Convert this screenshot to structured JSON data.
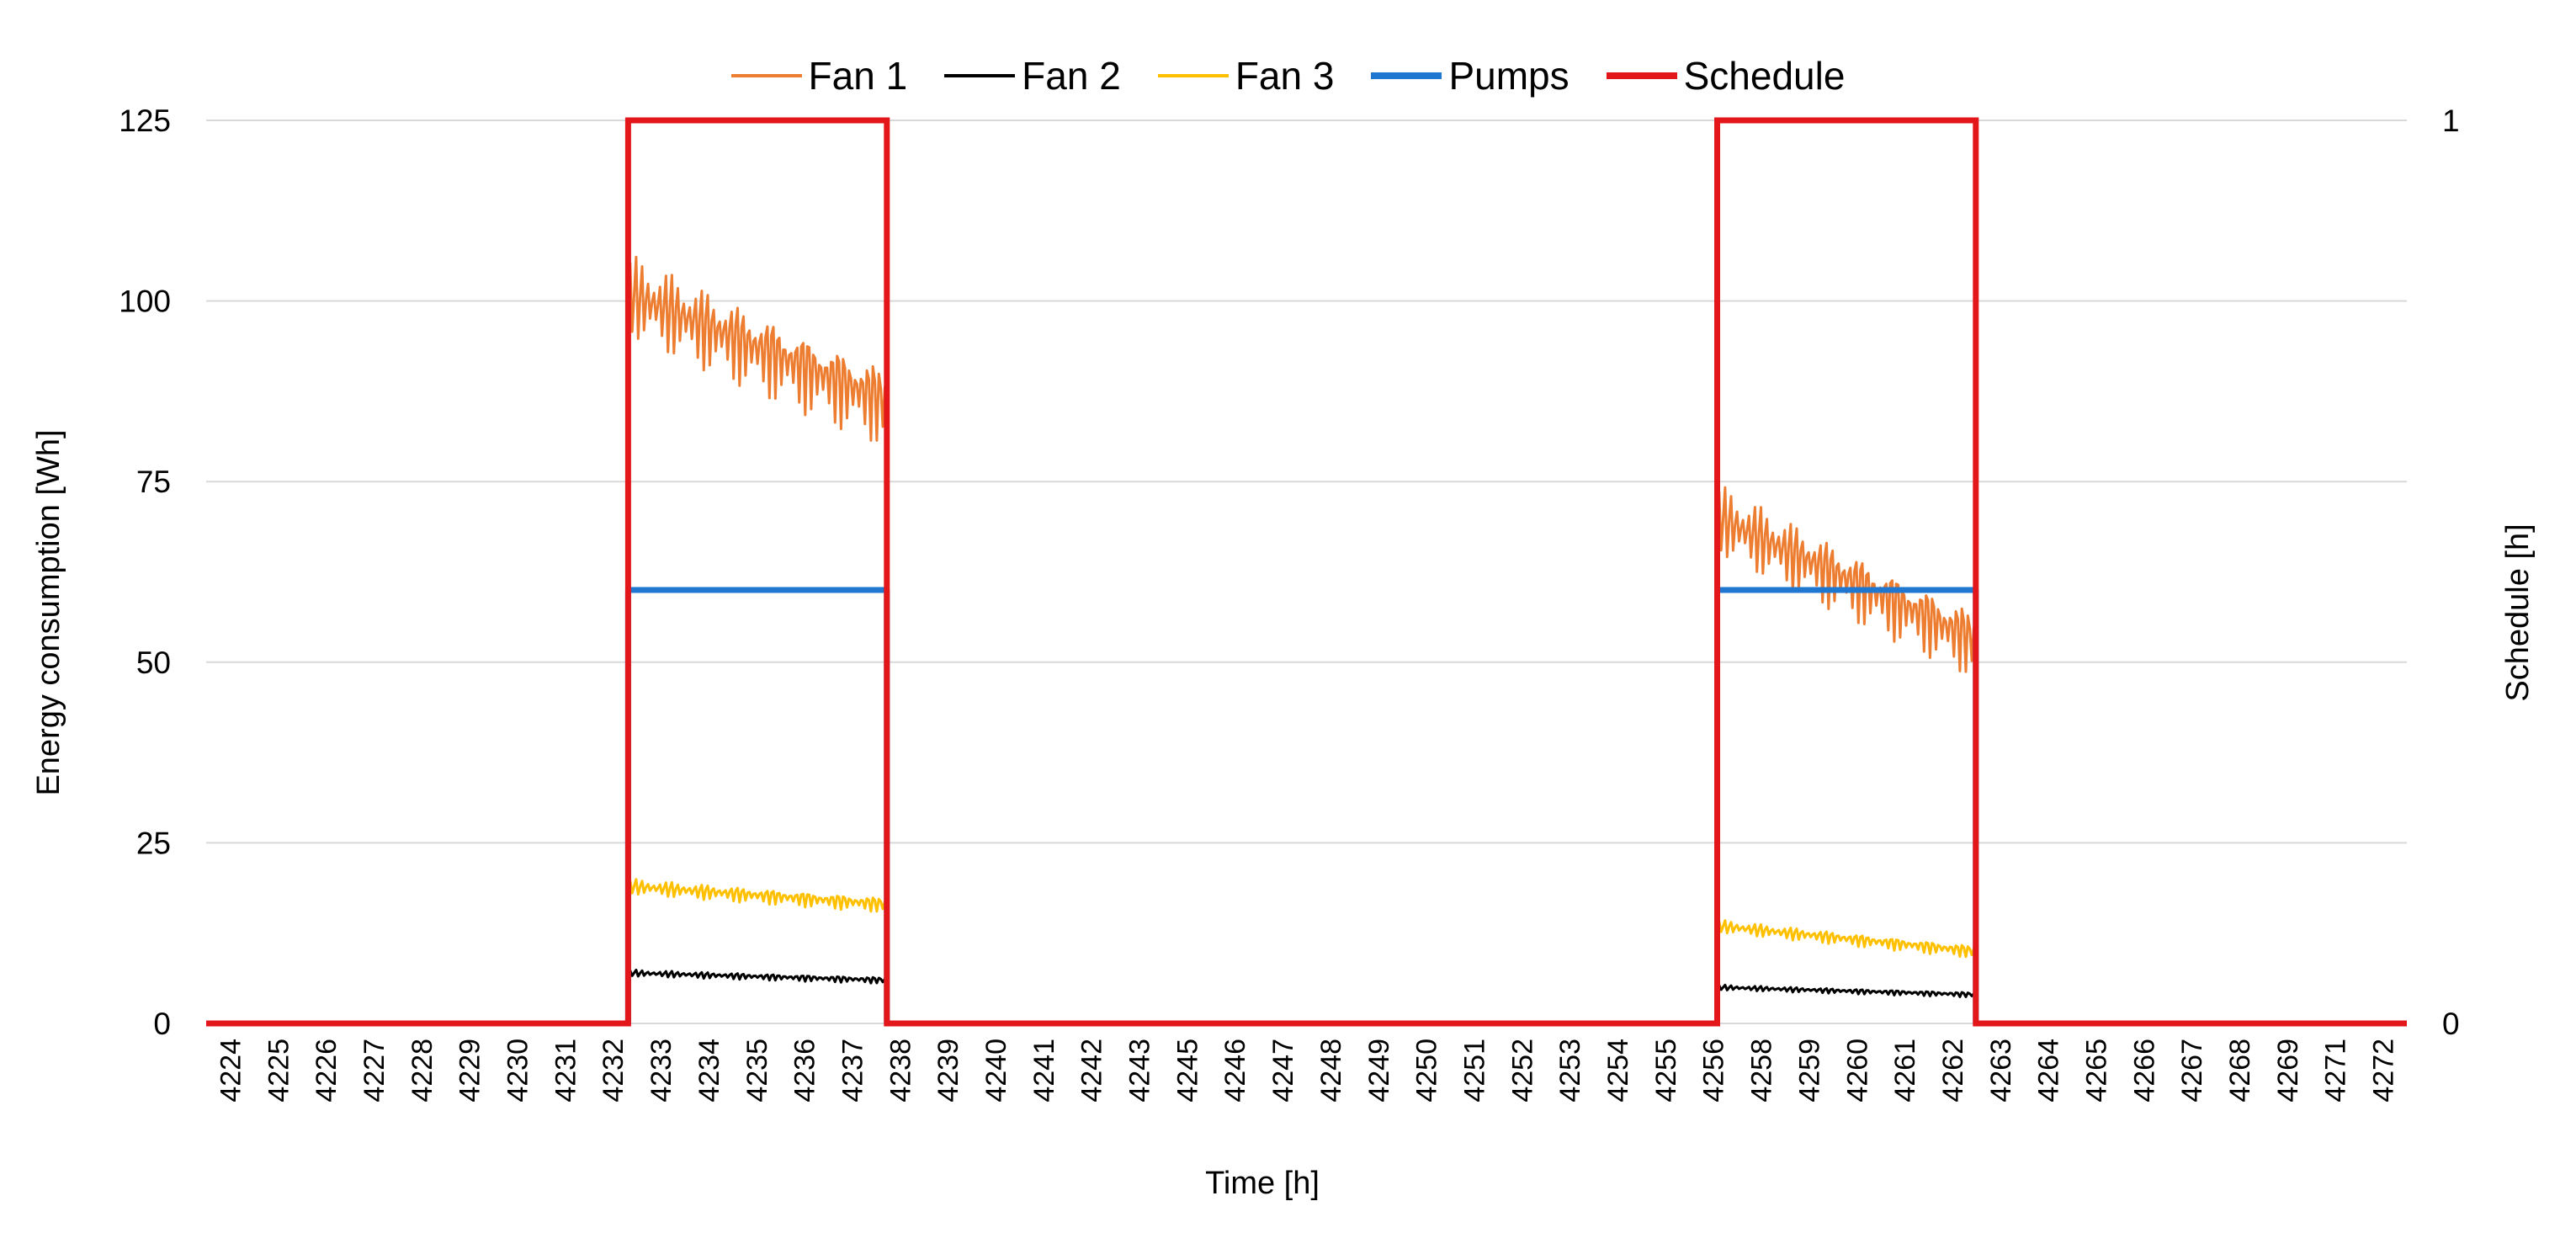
{
  "chart_data": {
    "type": "line",
    "xlabel": "Time [h]",
    "ylabel": "Energy consumption [Wh]",
    "y2label": "Schedule [h]",
    "ylim": [
      0,
      125
    ],
    "y_ticks": [
      0,
      25,
      50,
      75,
      100,
      125
    ],
    "y2lim": [
      0,
      1
    ],
    "y2_ticks": [
      0,
      1
    ],
    "grid": true,
    "legend_position": "top-center",
    "x_tick_labels": [
      "4224",
      "4225",
      "4226",
      "4227",
      "4228",
      "4229",
      "4230",
      "4231",
      "4232",
      "4233",
      "4234",
      "4235",
      "4236",
      "4237",
      "4238",
      "4239",
      "4240",
      "4241",
      "4242",
      "4243",
      "4245",
      "4246",
      "4247",
      "4248",
      "4249",
      "4250",
      "4251",
      "4252",
      "4253",
      "4254",
      "4255",
      "4256",
      "4258",
      "4259",
      "4260",
      "4261",
      "4262",
      "4263",
      "4264",
      "4265",
      "4266",
      "4267",
      "4268",
      "4269",
      "4271",
      "4272"
    ],
    "x_range_hours": [
      4224,
      4272.5
    ],
    "series": [
      {
        "name": "Fan 1",
        "color": "#ED7D31",
        "axis": "left",
        "style": "oscillating",
        "segments": [
          {
            "x_start": 4233.3,
            "x_end": 4239.0,
            "y_start": 101,
            "y_end": 86,
            "amplitude": 6.5
          },
          {
            "x_start": 4257.3,
            "x_end": 4263.0,
            "y_start": 70,
            "y_end": 53,
            "amplitude": 5.5
          }
        ]
      },
      {
        "name": "Fan 2",
        "color": "#000000",
        "axis": "left",
        "style": "oscillating",
        "segments": [
          {
            "x_start": 4233.3,
            "x_end": 4239.0,
            "y_start": 7,
            "y_end": 6,
            "amplitude": 0.5
          },
          {
            "x_start": 4257.3,
            "x_end": 4263.0,
            "y_start": 5,
            "y_end": 4,
            "amplitude": 0.4
          }
        ]
      },
      {
        "name": "Fan 3",
        "color": "#FFC000",
        "axis": "left",
        "style": "oscillating",
        "segments": [
          {
            "x_start": 4233.3,
            "x_end": 4239.0,
            "y_start": 19,
            "y_end": 16.5,
            "amplitude": 1.2
          },
          {
            "x_start": 4257.3,
            "x_end": 4263.0,
            "y_start": 13.5,
            "y_end": 10,
            "amplitude": 1.0
          }
        ]
      },
      {
        "name": "Pumps",
        "color": "#1F77D0",
        "axis": "left",
        "style": "constant",
        "segments": [
          {
            "x_start": 4233.3,
            "x_end": 4239.0,
            "y_start": 60,
            "y_end": 60
          },
          {
            "x_start": 4257.3,
            "x_end": 4263.0,
            "y_start": 60,
            "y_end": 60
          }
        ]
      },
      {
        "name": "Schedule",
        "color": "#E3161A",
        "axis": "right",
        "style": "step",
        "x": [
          4224,
          4233.3,
          4233.3,
          4239.0,
          4239.0,
          4257.3,
          4257.3,
          4263.0,
          4263.0,
          4272.5
        ],
        "y": [
          0,
          0,
          1,
          1,
          0,
          0,
          1,
          1,
          0,
          0
        ]
      }
    ]
  }
}
